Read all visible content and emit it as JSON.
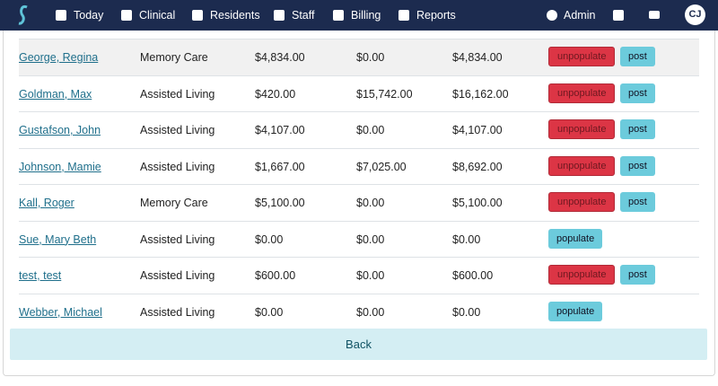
{
  "nav": {
    "items": [
      "Today",
      "Clinical",
      "Residents",
      "Staff",
      "Billing",
      "Reports"
    ],
    "admin": "Admin",
    "avatar": "CJ"
  },
  "table": {
    "rows": [
      [
        "George, Regina",
        "Memory Care",
        "$4,834.00",
        "$0.00",
        "$4,834.00"
      ],
      [
        "Goldman, Max",
        "Assisted Living",
        "$420.00",
        "$15,742.00",
        "$16,162.00"
      ],
      [
        "Gustafson, John",
        "Assisted Living",
        "$4,107.00",
        "$0.00",
        "$4,107.00"
      ],
      [
        "Johnson, Mamie",
        "Assisted Living",
        "$1,667.00",
        "$7,025.00",
        "$8,692.00"
      ],
      [
        "Kall, Roger",
        "Memory Care",
        "$5,100.00",
        "$0.00",
        "$5,100.00"
      ],
      [
        "Sue, Mary Beth",
        "Assisted Living",
        "$0.00",
        "$0.00",
        "$0.00"
      ],
      [
        "test, test",
        "Assisted Living",
        "$600.00",
        "$0.00",
        "$600.00"
      ],
      [
        "Webber, Michael",
        "Assisted Living",
        "$0.00",
        "$0.00",
        "$0.00"
      ]
    ],
    "actions": [
      [
        "unpopulate",
        "post"
      ],
      [
        "unpopulate",
        "post"
      ],
      [
        "unpopulate",
        "post"
      ],
      [
        "unpopulate",
        "post"
      ],
      [
        "unpopulate",
        "post"
      ],
      [
        "populate"
      ],
      [
        "unpopulate",
        "post"
      ],
      [
        "populate"
      ]
    ]
  },
  "back": "Back"
}
